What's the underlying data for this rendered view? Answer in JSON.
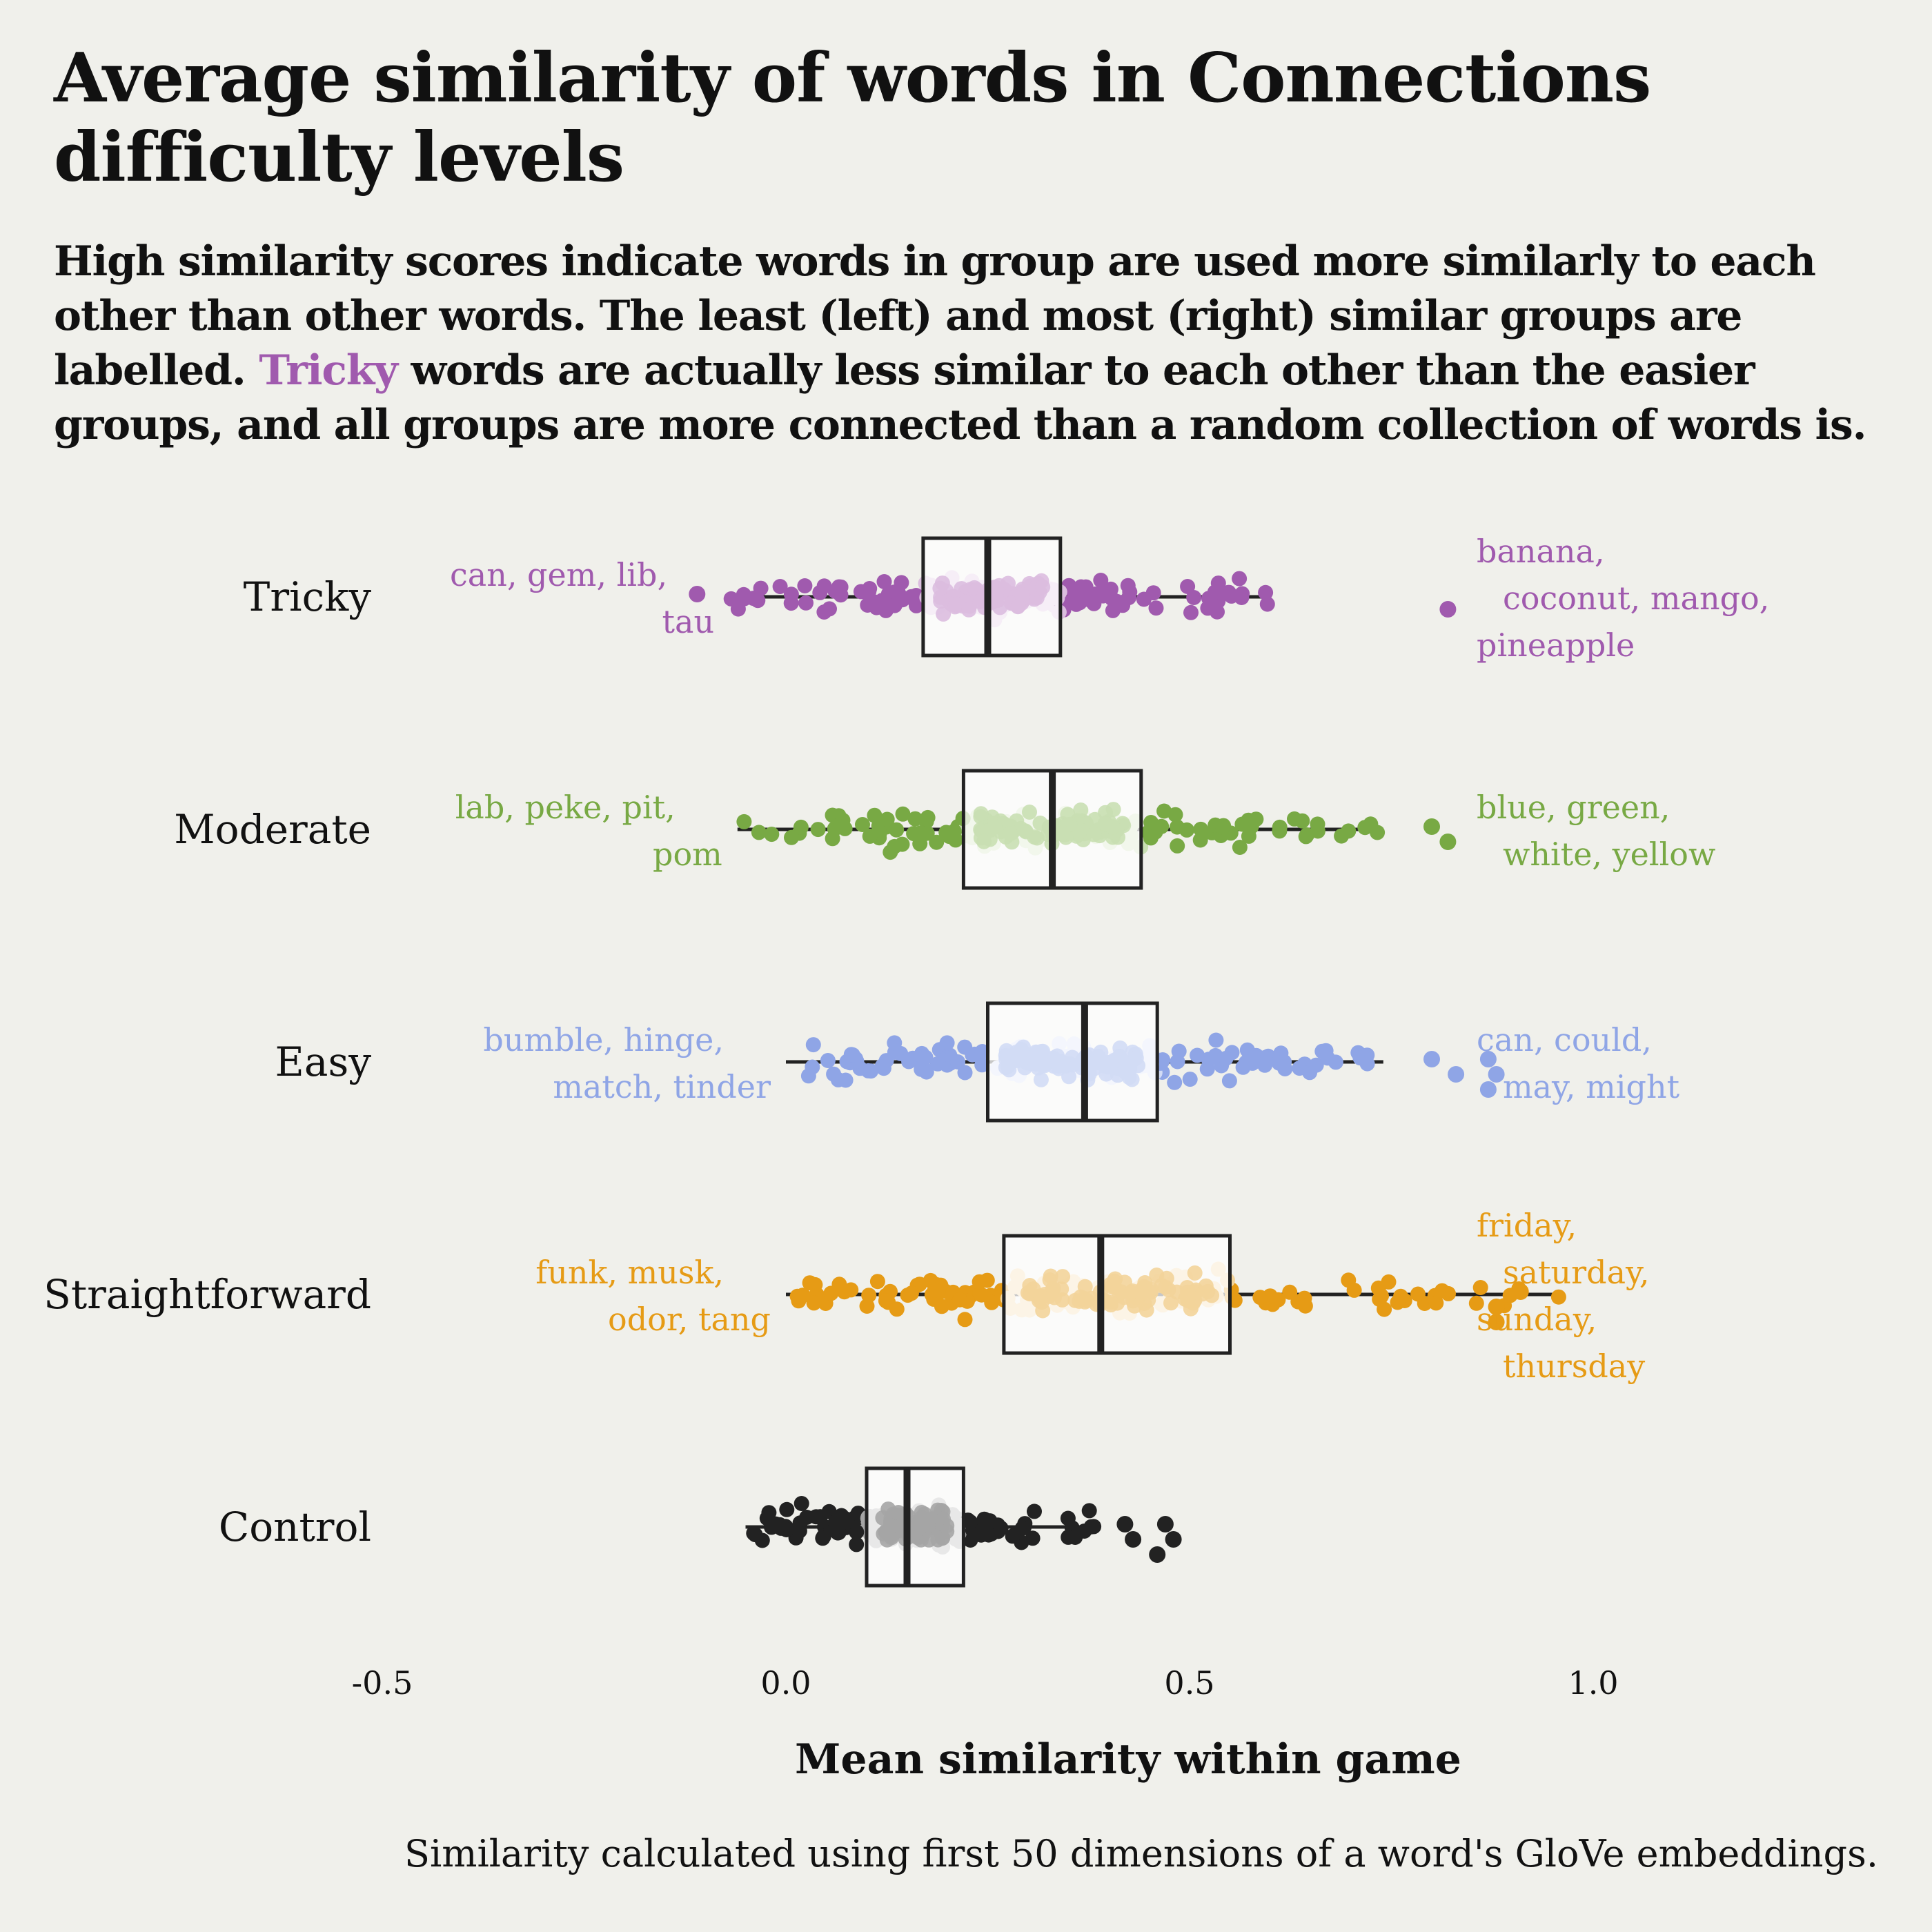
{
  "title": "Average similarity of words in Connections difficulty levels",
  "subtitle": {
    "part1": "High similarity scores indicate words in group are used more similarly to each other than other words. The least (left) and most (right) similar groups are labelled.",
    "highlight": "Tricky",
    "part2": "words are actually less similar to each other than the easier groups, and all groups are more connected than a random collection of words is."
  },
  "caption": "Similarity calculated using first 50 dimensions of a word's GloVe embeddings.",
  "chart_data": {
    "type": "boxplot",
    "xlabel": "Mean similarity within game",
    "xlim": [
      -0.5,
      1.25
    ],
    "xticks": [
      -0.5,
      0.0,
      0.5,
      1.0
    ],
    "xtick_labels": [
      "-0.5",
      "0.0",
      "0.5",
      "1.0"
    ],
    "grid": false,
    "categories": [
      "Tricky",
      "Moderate",
      "Easy",
      "Straightforward",
      "Control"
    ],
    "series": [
      {
        "name": "Tricky",
        "color": "#a05aae",
        "light_color": "#dbbddf",
        "box": {
          "whisker_low": -0.07,
          "q1": 0.17,
          "median": 0.25,
          "q3": 0.34,
          "whisker_high": 0.6
        },
        "outliers": [
          -0.11,
          0.82
        ],
        "low_label": [
          "can, gem, lib,",
          "tau"
        ],
        "high_label": [
          "banana,",
          "coconut, mango,",
          "pineapple"
        ]
      },
      {
        "name": "Moderate",
        "color": "#78a944",
        "light_color": "#c9dfb2",
        "box": {
          "whisker_low": -0.06,
          "q1": 0.22,
          "median": 0.33,
          "q3": 0.44,
          "whisker_high": 0.74
        },
        "outliers": [
          0.8,
          0.82
        ],
        "low_label": [
          "lab, peke, pit,",
          "pom"
        ],
        "high_label": [
          "blue, green,",
          "white, yellow"
        ]
      },
      {
        "name": "Easy",
        "color": "#8fa5e6",
        "light_color": "#d2dbf5",
        "box": {
          "whisker_low": 0.0,
          "q1": 0.25,
          "median": 0.37,
          "q3": 0.46,
          "whisker_high": 0.74
        },
        "outliers": [
          0.8,
          0.83,
          0.87,
          0.87,
          0.88
        ],
        "low_label": [
          "bumble, hinge,",
          "match, tinder"
        ],
        "high_label": [
          "can, could,",
          "may, might"
        ]
      },
      {
        "name": "Straightforward",
        "color": "#e69b15",
        "light_color": "#f3d49a",
        "box": {
          "whisker_low": 0.0,
          "q1": 0.27,
          "median": 0.39,
          "q3": 0.55,
          "whisker_high": 0.96
        },
        "outliers": [
          0.91,
          0.88,
          0.88
        ],
        "low_label": [
          "funk, musk,",
          "odor, tang"
        ],
        "high_label": [
          "friday,",
          "saturday,",
          "sunday,",
          "thursday"
        ]
      },
      {
        "name": "Control",
        "color": "#222222",
        "light_color": "#a5a5a5",
        "box": {
          "whisker_low": -0.05,
          "q1": 0.1,
          "median": 0.15,
          "q3": 0.22,
          "whisker_high": 0.39
        },
        "outliers": [
          0.42,
          0.43,
          0.46,
          0.47,
          0.48
        ],
        "low_label": [],
        "high_label": []
      }
    ]
  }
}
